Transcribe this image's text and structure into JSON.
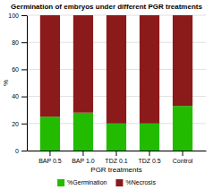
{
  "chart_data": {
    "type": "bar",
    "stacked": true,
    "title": "Germination of embryos under different PGR treatments",
    "x_label": "PGR treatments",
    "y_label": "%",
    "categories": [
      "BAP 0.5",
      "BAP 1.0",
      "TDZ 0.1",
      "TDZ 0.5",
      "Control"
    ],
    "series": [
      {
        "name": "%Germination",
        "color": "#22BB00",
        "values": [
          25,
          28,
          20,
          20,
          33
        ]
      },
      {
        "name": "%Necrosis",
        "color": "#8B1A1A",
        "values": [
          75,
          72,
          80,
          80,
          67
        ]
      }
    ],
    "ylim": [
      0,
      100
    ],
    "yticks": [
      0,
      20,
      40,
      60,
      80,
      100
    ],
    "grid": true
  }
}
